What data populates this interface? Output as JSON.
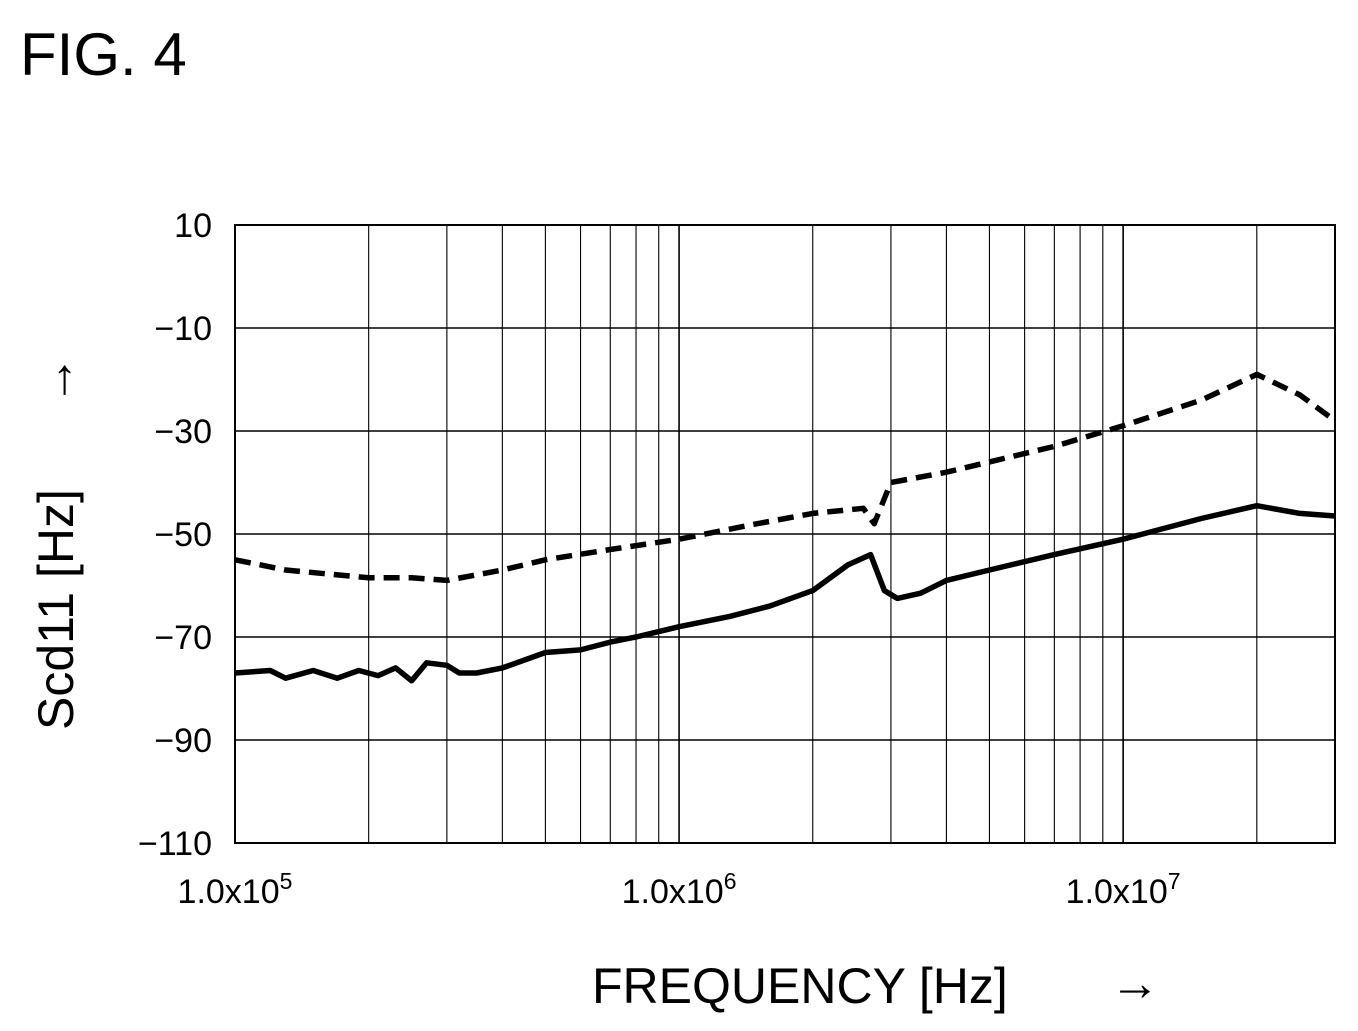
{
  "figure_label": "FIG. 4",
  "chart_data": {
    "type": "line",
    "xlabel": "FREQUENCY [Hz]",
    "xlabel_arrow": "→",
    "ylabel": "Scd11 [Hz]",
    "ylabel_arrow": "→",
    "xscale": "log",
    "xlim": [
      100000,
      30000000
    ],
    "ylim": [
      -110,
      10
    ],
    "grid": true,
    "y_ticks": [
      {
        "value": 10,
        "label": "10"
      },
      {
        "value": -10,
        "label": "−10"
      },
      {
        "value": -30,
        "label": "−30"
      },
      {
        "value": -50,
        "label": "−50"
      },
      {
        "value": -70,
        "label": "−70"
      },
      {
        "value": -90,
        "label": "−90"
      },
      {
        "value": -110,
        "label": "−110"
      }
    ],
    "x_ticks": [
      {
        "value": 100000,
        "mantissa": "1.0x10",
        "exponent": "5"
      },
      {
        "value": 1000000,
        "mantissa": "1.0x10",
        "exponent": "6"
      },
      {
        "value": 10000000,
        "mantissa": "1.0x10",
        "exponent": "7"
      }
    ],
    "series": [
      {
        "style": "dashed",
        "color": "#000000",
        "x": [
          100000,
          130000,
          200000,
          250000,
          300000,
          400000,
          500000,
          700000,
          1000000,
          1500000,
          2000000,
          2600000,
          2750000,
          3000000,
          4000000,
          5000000,
          7000000,
          10000000,
          15000000,
          20000000,
          25000000,
          30000000
        ],
        "y": [
          -55,
          -57,
          -58.5,
          -58.5,
          -59,
          -57,
          -55,
          -53,
          -51,
          -48,
          -46,
          -45,
          -48,
          -40,
          -38,
          -36,
          -33,
          -29,
          -24,
          -19,
          -23,
          -28
        ]
      },
      {
        "style": "solid",
        "color": "#000000",
        "x": [
          100000,
          120000,
          130000,
          150000,
          170000,
          190000,
          210000,
          230000,
          250000,
          270000,
          300000,
          320000,
          350000,
          400000,
          500000,
          600000,
          700000,
          800000,
          1000000,
          1300000,
          1600000,
          2000000,
          2400000,
          2700000,
          2900000,
          3100000,
          3500000,
          4000000,
          5000000,
          7000000,
          10000000,
          15000000,
          20000000,
          25000000,
          30000000
        ],
        "y": [
          -77,
          -76.5,
          -78,
          -76.5,
          -78,
          -76.5,
          -77.5,
          -76,
          -78.5,
          -75,
          -75.5,
          -77,
          -77,
          -76,
          -73,
          -72.5,
          -71,
          -70,
          -68,
          -66,
          -64,
          -61,
          -56,
          -54,
          -61,
          -62.5,
          -61.5,
          -59,
          -57,
          -54,
          -51,
          -47,
          -44.5,
          -46,
          -46.5
        ]
      }
    ]
  }
}
